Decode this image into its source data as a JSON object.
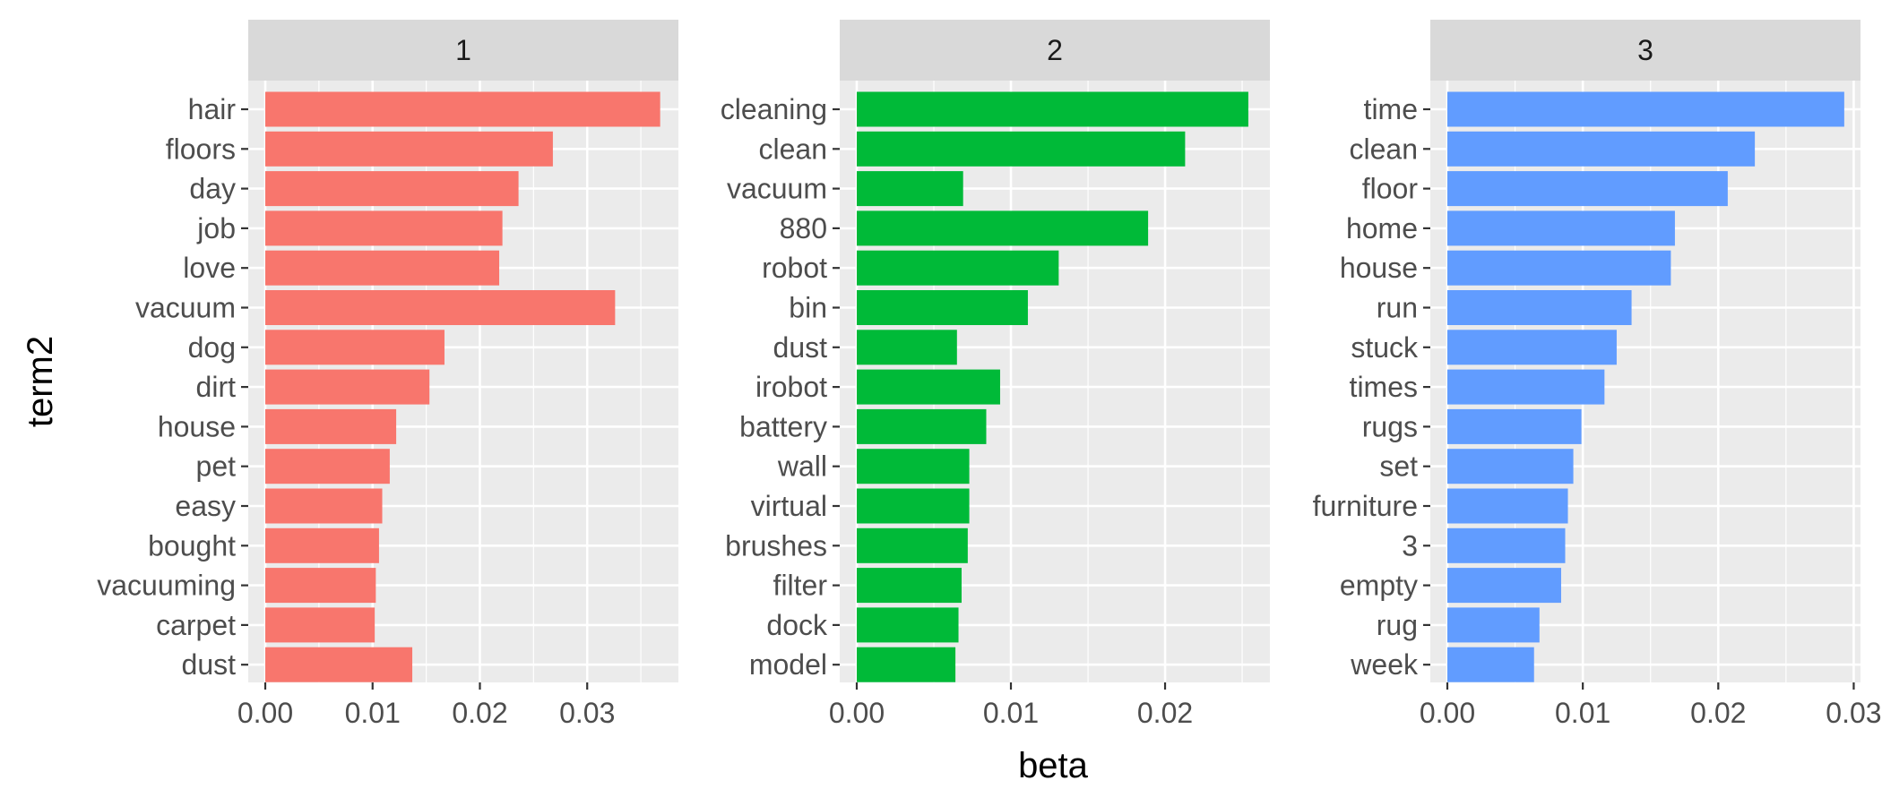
{
  "chart_data": {
    "type": "bar",
    "orientation": "horizontal",
    "facet_by": "topic",
    "xlabel": "beta",
    "ylabel": "term2",
    "grid": true,
    "colors": {
      "panel_bg": "#ebebeb",
      "strip_bg": "#d9d9d9",
      "grid": "#ffffff"
    },
    "panels": [
      {
        "strip": "1",
        "color": "#F8766D",
        "xlim": [
          0,
          0.0385
        ],
        "xticks": [
          0.0,
          0.01,
          0.02,
          0.03
        ],
        "xtick_labels": [
          "0.00",
          "0.01",
          "0.02",
          "0.03"
        ],
        "categories": [
          "hair",
          "floors",
          "day",
          "job",
          "love",
          "vacuum",
          "dog",
          "dirt",
          "house",
          "pet",
          "easy",
          "bought",
          "vacuuming",
          "carpet",
          "dust"
        ],
        "values": [
          0.0368,
          0.0268,
          0.0236,
          0.0221,
          0.0218,
          0.0326,
          0.0167,
          0.0153,
          0.0122,
          0.0116,
          0.0109,
          0.0106,
          0.0103,
          0.0102,
          0.0137
        ]
      },
      {
        "strip": "2",
        "color": "#00BA38",
        "xlim": [
          0,
          0.0268
        ],
        "xticks": [
          0.0,
          0.01,
          0.02
        ],
        "xtick_labels": [
          "0.00",
          "0.01",
          "0.02"
        ],
        "categories": [
          "cleaning",
          "clean",
          "vacuum",
          "880",
          "robot",
          "bin",
          "dust",
          "irobot",
          "battery",
          "wall",
          "virtual",
          "brushes",
          "filter",
          "dock",
          "model"
        ],
        "values": [
          0.0254,
          0.0213,
          0.0069,
          0.0189,
          0.0131,
          0.0111,
          0.0065,
          0.0093,
          0.0084,
          0.0073,
          0.0073,
          0.0072,
          0.0068,
          0.0066,
          0.0064
        ]
      },
      {
        "strip": "3",
        "color": "#619CFF",
        "xlim": [
          0,
          0.0305
        ],
        "xticks": [
          0.0,
          0.01,
          0.02,
          0.03
        ],
        "xtick_labels": [
          "0.00",
          "0.01",
          "0.02",
          "0.03"
        ],
        "categories": [
          "time",
          "clean",
          "floor",
          "home",
          "house",
          "run",
          "stuck",
          "times",
          "rugs",
          "set",
          "furniture",
          "3",
          "empty",
          "rug",
          "week"
        ],
        "values": [
          0.0293,
          0.0227,
          0.0207,
          0.0168,
          0.0165,
          0.0136,
          0.0125,
          0.0116,
          0.0099,
          0.0093,
          0.0089,
          0.0087,
          0.0084,
          0.0068,
          0.0064
        ]
      }
    ]
  }
}
